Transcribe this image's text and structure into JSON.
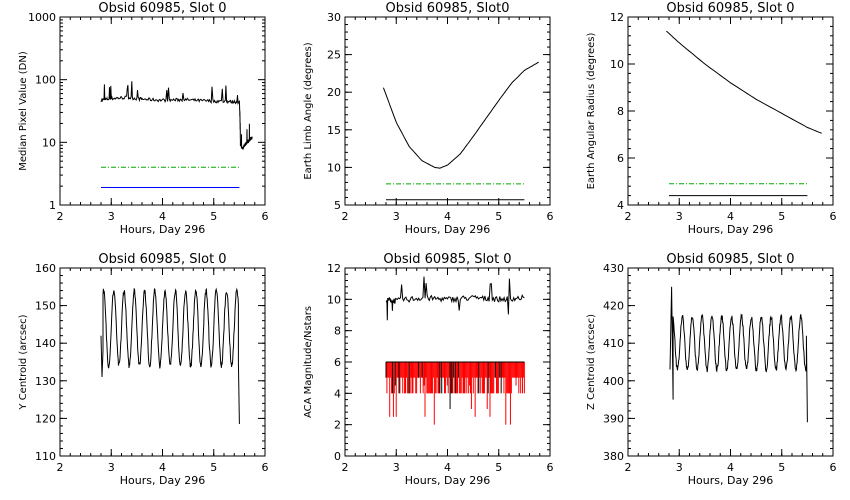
{
  "chart_data": [
    {
      "type": "line",
      "title": "Obsid 60985, Slot 0",
      "xlabel": "Hours, Day 296",
      "ylabel": "Median Pixel Value (DN)",
      "xlim": [
        2,
        6
      ],
      "ylim": [
        1,
        1000
      ],
      "y_log": true,
      "xticks": [
        "2",
        "3",
        "4",
        "5",
        "6"
      ],
      "yticks": [
        "1",
        "10",
        "100",
        "1000"
      ],
      "series": [
        {
          "color": "#000000",
          "style": "solid",
          "noisy": true,
          "x": [
            2.8,
            3.0,
            3.3,
            3.6,
            4.0,
            4.4,
            4.8,
            5.2,
            5.5,
            5.52,
            5.56,
            5.6,
            5.65,
            5.7,
            5.75
          ],
          "y": [
            47,
            50,
            52,
            49,
            47,
            48,
            46,
            45,
            44,
            9,
            8,
            9,
            10,
            11,
            12
          ]
        },
        {
          "color": "#00aa00",
          "style": "dashdot",
          "x": [
            2.8,
            5.5
          ],
          "y": [
            4,
            4
          ]
        },
        {
          "color": "#0000ff",
          "style": "solid",
          "x": [
            2.8,
            5.5
          ],
          "y": [
            1.9,
            1.9
          ]
        }
      ]
    },
    {
      "type": "line",
      "title": "Obsid 60985, Slot0",
      "xlabel": "Hours, Day 296",
      "ylabel": "Earth Limb Angle (degrees)",
      "xlim": [
        2,
        6
      ],
      "ylim": [
        5,
        30
      ],
      "xticks": [
        "2",
        "3",
        "4",
        "5",
        "6"
      ],
      "yticks": [
        "5",
        "10",
        "15",
        "20",
        "25",
        "30"
      ],
      "series": [
        {
          "color": "#000000",
          "style": "solid",
          "x": [
            2.75,
            3.0,
            3.25,
            3.5,
            3.75,
            3.85,
            4.0,
            4.25,
            4.5,
            4.75,
            5.0,
            5.25,
            5.5,
            5.78
          ],
          "y": [
            20.6,
            16.0,
            12.8,
            10.9,
            10.0,
            9.9,
            10.3,
            11.8,
            14.1,
            16.5,
            18.9,
            21.2,
            22.9,
            24.0
          ]
        },
        {
          "color": "#00aa00",
          "style": "dashdot",
          "x": [
            2.8,
            5.5
          ],
          "y": [
            7.8,
            7.8
          ]
        },
        {
          "color": "#000000",
          "style": "solid",
          "x": [
            2.8,
            5.5
          ],
          "y": [
            5.7,
            5.7
          ]
        }
      ]
    },
    {
      "type": "line",
      "title": "Obsid 60985, Slot 0",
      "xlabel": "Hours, Day 296",
      "ylabel": "Earth Angular Radius (degrees)",
      "xlim": [
        2,
        6
      ],
      "ylim": [
        4,
        12
      ],
      "xticks": [
        "2",
        "3",
        "4",
        "5",
        "6"
      ],
      "yticks": [
        "4",
        "6",
        "8",
        "10",
        "12"
      ],
      "series": [
        {
          "color": "#000000",
          "style": "solid",
          "x": [
            2.75,
            3.0,
            3.5,
            4.0,
            4.5,
            5.0,
            5.5,
            5.78
          ],
          "y": [
            11.4,
            10.9,
            10.0,
            9.2,
            8.5,
            7.9,
            7.3,
            7.05
          ]
        },
        {
          "color": "#00aa00",
          "style": "dashdot",
          "x": [
            2.8,
            5.5
          ],
          "y": [
            4.9,
            4.9
          ]
        },
        {
          "color": "#000000",
          "style": "solid",
          "x": [
            2.8,
            5.5
          ],
          "y": [
            4.4,
            4.4
          ]
        }
      ]
    },
    {
      "type": "line",
      "title": "Obsid 60985, Slot 0",
      "xlabel": "Hours, Day 296",
      "ylabel": "Y Centroid (arcsec)",
      "xlim": [
        2,
        6
      ],
      "ylim": [
        110,
        160
      ],
      "xticks": [
        "2",
        "3",
        "4",
        "5",
        "6"
      ],
      "yticks": [
        "110",
        "120",
        "130",
        "140",
        "150",
        "160"
      ],
      "series": [
        {
          "color": "#000000",
          "style": "solid",
          "oscillation": true,
          "x_start": 2.8,
          "x_end": 5.48,
          "center": 144,
          "amplitude": 10,
          "period_hours": 0.2,
          "spike_start": {
            "x": [
              2.8,
              2.82,
              2.84
            ],
            "y": [
              142,
              131,
              138
            ]
          },
          "spike_end": {
            "x": [
              5.48,
              5.5
            ],
            "y": [
              135,
              118.5
            ]
          }
        }
      ]
    },
    {
      "type": "line",
      "title": "Obsid 60985, Slot 0",
      "xlabel": "Hours, Day 296",
      "ylabel": "ACA Magnitude/Nstars",
      "xlim": [
        2,
        6
      ],
      "ylim": [
        0,
        12
      ],
      "xticks": [
        "2",
        "3",
        "4",
        "5",
        "6"
      ],
      "yticks": [
        "0",
        "2",
        "4",
        "6",
        "8",
        "10",
        "12"
      ],
      "series": [
        {
          "color": "#000000",
          "style": "solid",
          "noisy": true,
          "x": [
            2.8,
            3.0,
            3.5,
            4.0,
            4.5,
            5.0,
            5.5
          ],
          "y": [
            10.0,
            9.9,
            10.1,
            10.0,
            10.1,
            10.0,
            10.1
          ]
        },
        {
          "color": "#ff0000",
          "style": "bars",
          "x_start": 2.8,
          "x_end": 5.5,
          "top": 6,
          "min_value": 2
        },
        {
          "color": "#000000",
          "style": "solid",
          "x": [
            2.8,
            5.5
          ],
          "y": [
            6,
            6
          ]
        }
      ]
    },
    {
      "type": "line",
      "title": "Obsid 60985, Slot 0",
      "xlabel": "Hours, Day 296",
      "ylabel": "Z Centroid (arcsec)",
      "xlim": [
        2,
        6
      ],
      "ylim": [
        380,
        430
      ],
      "xticks": [
        "2",
        "3",
        "4",
        "5",
        "6"
      ],
      "yticks": [
        "380",
        "390",
        "400",
        "410",
        "420",
        "430"
      ],
      "series": [
        {
          "color": "#000000",
          "style": "solid",
          "oscillation": true,
          "x_start": 2.82,
          "x_end": 5.48,
          "center": 410,
          "amplitude": 7,
          "period_hours": 0.1925,
          "spike_start": {
            "x": [
              2.82,
              2.85,
              2.88
            ],
            "y": [
              403,
              425,
              395
            ]
          },
          "spike_end": {
            "x": [
              5.48,
              5.5
            ],
            "y": [
              412,
              389
            ]
          }
        }
      ]
    }
  ]
}
